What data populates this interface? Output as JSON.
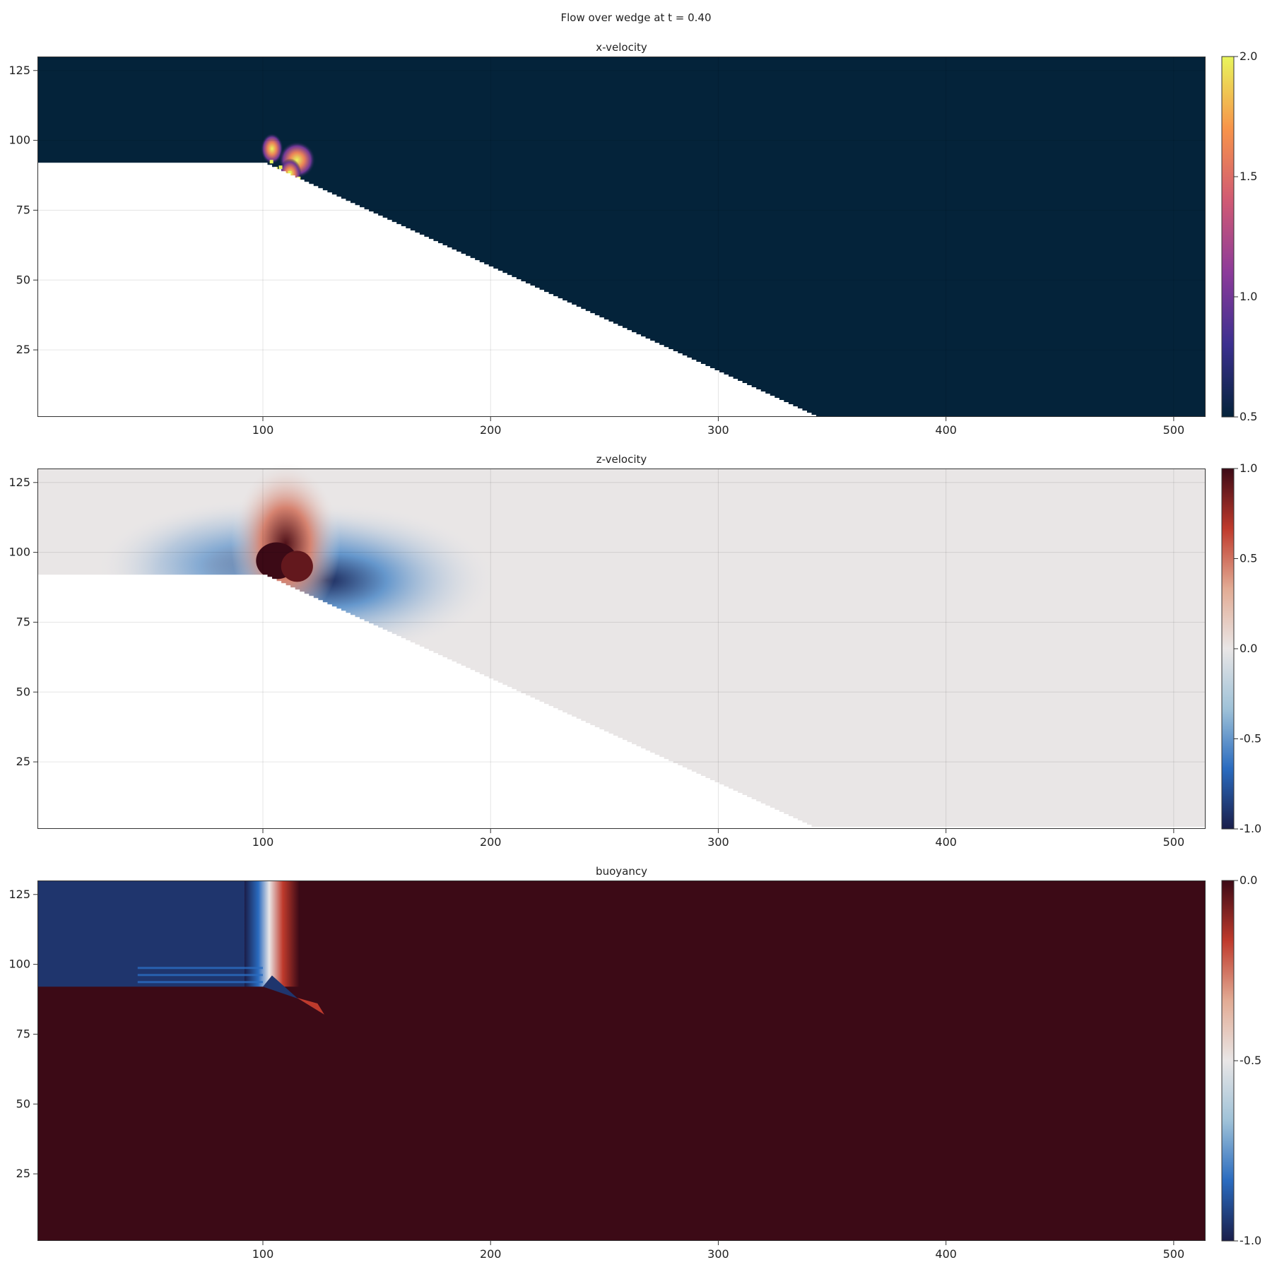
{
  "figure": {
    "title": "Flow over wedge at t = 0.40"
  },
  "chart_data": [
    {
      "type": "heatmap",
      "title": "x-velocity",
      "xlabel": "",
      "ylabel": "",
      "xlim": [
        1,
        514
      ],
      "ylim": [
        1,
        130
      ],
      "xticks": [
        100,
        200,
        300,
        400,
        500
      ],
      "xtick_labels": [
        "100",
        "200",
        "300",
        "400",
        "500"
      ],
      "yticks": [
        25,
        50,
        75,
        100,
        125
      ],
      "ytick_labels": [
        "25",
        "50",
        "75",
        "100",
        "125"
      ],
      "grid": true,
      "colormap": "thermal",
      "colors": [
        "#04233a",
        "#3b2f8f",
        "#8c3b9a",
        "#d05a74",
        "#f7944a",
        "#e8f55b"
      ],
      "colorbar": {
        "range": [
          0.5,
          2.0
        ],
        "ticks": [
          0.5,
          1.0,
          1.5,
          2.0
        ],
        "tick_labels": [
          "0.5",
          "1.0",
          "1.5",
          "2.0"
        ]
      },
      "masked_region": {
        "description": "solid wedge (no data)",
        "shelf_height": 92,
        "slope_start_x": 100,
        "slope_end_x": 343,
        "slope_end_z": 1
      },
      "background_value": 0.5,
      "features": [
        {
          "x": 104,
          "z": 97,
          "value": 2.0
        },
        {
          "x": 115,
          "z": 93,
          "value": 2.0
        },
        {
          "x": 112,
          "z": 88,
          "value": 1.8
        }
      ]
    },
    {
      "type": "heatmap",
      "title": "z-velocity",
      "xlabel": "",
      "ylabel": "",
      "xlim": [
        1,
        514
      ],
      "ylim": [
        1,
        130
      ],
      "xticks": [
        100,
        200,
        300,
        400,
        500
      ],
      "xtick_labels": [
        "100",
        "200",
        "300",
        "400",
        "500"
      ],
      "yticks": [
        25,
        50,
        75,
        100,
        125
      ],
      "ytick_labels": [
        "25",
        "50",
        "75",
        "100",
        "125"
      ],
      "grid": true,
      "colormap": "balance",
      "colors": [
        "#1a1e4a",
        "#2a6bbf",
        "#9fc2d8",
        "#e9e6e6",
        "#e2ab94",
        "#bf3a2c",
        "#3c0a16"
      ],
      "colorbar": {
        "range": [
          -1.0,
          1.0
        ],
        "ticks": [
          -1.0,
          -0.5,
          0.0,
          0.5,
          1.0
        ],
        "tick_labels": [
          "-1.0",
          "-0.5",
          "0.0",
          "0.5",
          "1.0"
        ]
      },
      "masked_region": {
        "description": "solid wedge (no data)",
        "shelf_height": 92,
        "slope_start_x": 100,
        "slope_end_x": 343,
        "slope_end_z": 1
      },
      "background_value": 0.0,
      "features": [
        {
          "x": 110,
          "z": 112,
          "value": 0.8
        },
        {
          "x": 98,
          "z": 97,
          "value": -0.9
        },
        {
          "x": 122,
          "z": 90,
          "value": -0.8
        },
        {
          "x": 107,
          "z": 95,
          "value": 1.0
        }
      ]
    },
    {
      "type": "heatmap",
      "title": "buoyancy",
      "xlabel": "",
      "ylabel": "",
      "xlim": [
        1,
        514
      ],
      "ylim": [
        1,
        130
      ],
      "xticks": [
        100,
        200,
        300,
        400,
        500
      ],
      "xtick_labels": [
        "100",
        "200",
        "300",
        "400",
        "500"
      ],
      "yticks": [
        25,
        50,
        75,
        100,
        125
      ],
      "ytick_labels": [
        "25",
        "50",
        "75",
        "100",
        "125"
      ],
      "grid": false,
      "colormap": "balance",
      "colors": [
        "#1a1e4a",
        "#2a6bbf",
        "#9fc2d8",
        "#e9e6e6",
        "#e2ab94",
        "#bf3a2c",
        "#3c0a16"
      ],
      "colorbar": {
        "range": [
          -1.0,
          0.0
        ],
        "ticks": [
          -1.0,
          -0.5,
          0.0
        ],
        "tick_labels": [
          "-1.0",
          "-0.5",
          "0.0"
        ]
      },
      "regions": [
        {
          "description": "dense fluid upstream",
          "x_range": [
            1,
            94
          ],
          "z_range": [
            92,
            130
          ],
          "value": -0.95
        },
        {
          "description": "light fluid elsewhere",
          "value": 0.0
        }
      ],
      "front": {
        "x_at_top": 102,
        "x_at_shelf": 100,
        "width": 24
      }
    }
  ]
}
